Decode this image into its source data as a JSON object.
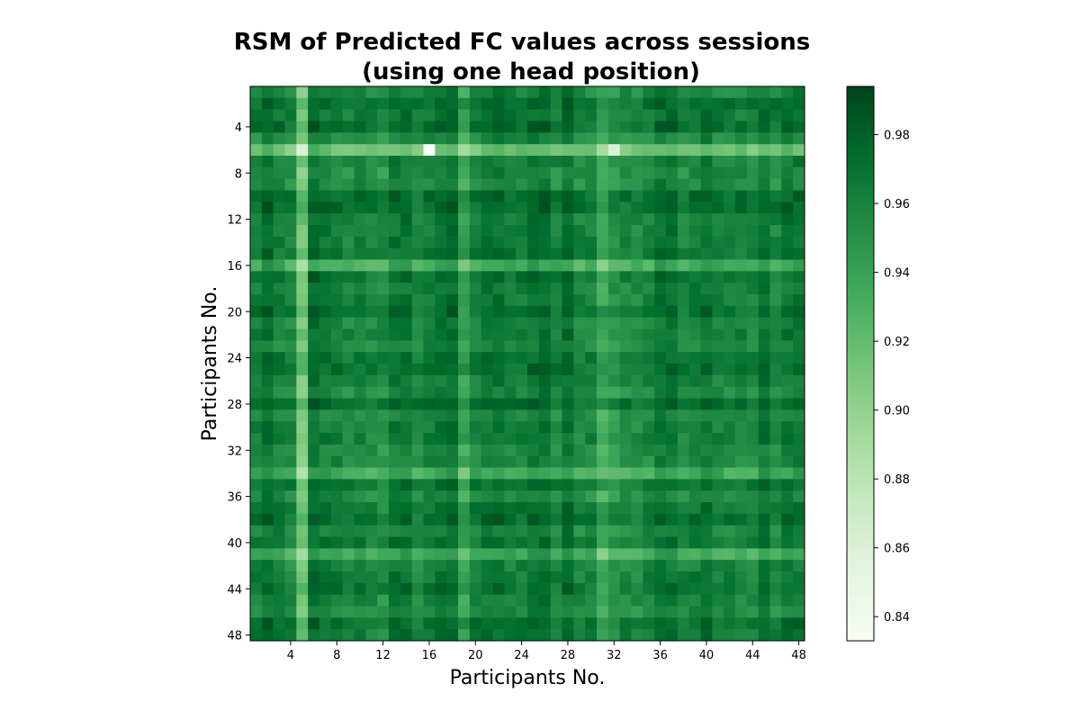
{
  "chart_data": {
    "type": "heatmap",
    "title_line1": "RSM of Predicted FC values across sessions",
    "title_line2": "(using one head position)",
    "xlabel": "Participants No.",
    "ylabel": "Participants No.",
    "n_rows": 48,
    "n_cols": 48,
    "x_ticks": [
      4,
      8,
      12,
      16,
      20,
      24,
      28,
      32,
      36,
      40,
      44,
      48
    ],
    "y_ticks": [
      4,
      8,
      12,
      16,
      20,
      24,
      28,
      32,
      36,
      40,
      44,
      48
    ],
    "colormap": "Greens",
    "colorbar": {
      "vmin": 0.833,
      "vmax": 0.994,
      "ticks": [
        0.84,
        0.86,
        0.88,
        0.9,
        0.92,
        0.94,
        0.96,
        0.98
      ],
      "tick_labels": [
        "0.84",
        "0.86",
        "0.88",
        "0.90",
        "0.92",
        "0.94",
        "0.96",
        "0.98"
      ]
    },
    "row_offsets": {
      "6": -0.055,
      "16": -0.035,
      "34": -0.03,
      "41": -0.025
    },
    "col_offsets": {
      "5": -0.045,
      "19": -0.02,
      "31": -0.035,
      "32": -0.02
    },
    "cell_notes": [
      {
        "row": 6,
        "col": 16,
        "value": 0.833
      },
      {
        "row": 6,
        "col": 32,
        "value": 0.86
      }
    ]
  }
}
